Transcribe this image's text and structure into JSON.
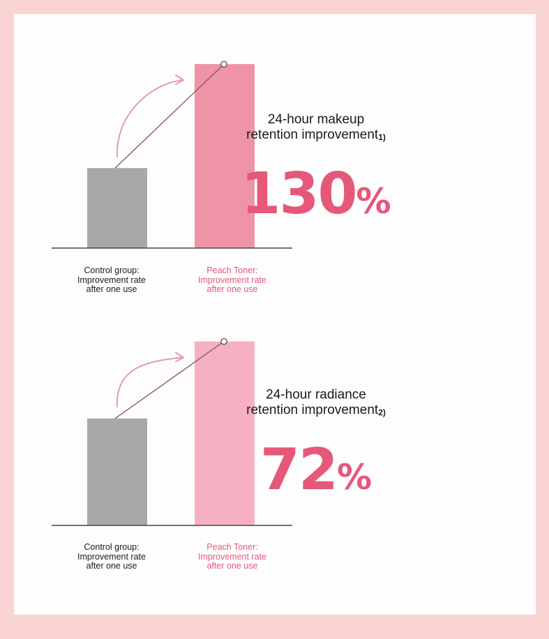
{
  "colors": {
    "background": "#fad4d2",
    "card": "#fdfdfd",
    "control_bar": "#a8a8a8",
    "toner_bar_1": "#ef93a9",
    "toner_bar_2": "#f5b1c2",
    "accent": "#e6587a",
    "arrow": "#e59aaa",
    "connector": "#8c5a66"
  },
  "chart_data": [
    {
      "type": "bar",
      "categories": [
        "Control group:\nImprovement rate\nafter one use",
        "Peach Toner:\nImprovement rate\nafter one use"
      ],
      "title": "24-hour makeup retention improvement",
      "title_footnote": "1)",
      "highlight_value": "130",
      "highlight_unit": "%",
      "values": [
        100,
        230
      ],
      "ylim": [
        0,
        230
      ],
      "grid": false,
      "legend": "none"
    },
    {
      "type": "bar",
      "categories": [
        "Control group:\nImprovement rate\nafter one use",
        "Peach Toner:\nImprovement rate\nafter one use"
      ],
      "title": "24-hour radiance retention improvement",
      "title_footnote": "2)",
      "highlight_value": "72",
      "highlight_unit": "%",
      "values": [
        100,
        172
      ],
      "ylim": [
        0,
        172
      ],
      "grid": false,
      "legend": "none"
    }
  ],
  "panels": [
    {
      "title_line1": "24-hour makeup",
      "title_line2": "retention improvement",
      "footnote": "1)",
      "value": "130",
      "unit": "%"
    },
    {
      "title_line1": "24-hour radiance",
      "title_line2": "retention improvement",
      "footnote": "2)",
      "value": "72",
      "unit": "%"
    }
  ]
}
